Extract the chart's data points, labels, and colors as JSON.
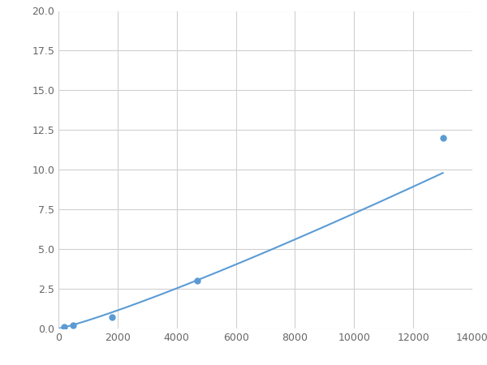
{
  "x_points": [
    200,
    500,
    1800,
    4700,
    13000
  ],
  "y_points": [
    0.1,
    0.22,
    0.72,
    3.0,
    12.0
  ],
  "xlim": [
    0,
    14000
  ],
  "ylim": [
    0,
    20.0
  ],
  "xticks": [
    0,
    2000,
    4000,
    6000,
    8000,
    10000,
    12000,
    14000
  ],
  "yticks": [
    0.0,
    2.5,
    5.0,
    7.5,
    10.0,
    12.5,
    15.0,
    17.5,
    20.0
  ],
  "line_color": "#5b9bd5",
  "marker_color": "#5b9bd5",
  "background_color": "#ffffff",
  "grid_color": "#d0d0d0",
  "marker_size": 6,
  "line_width": 1.5
}
